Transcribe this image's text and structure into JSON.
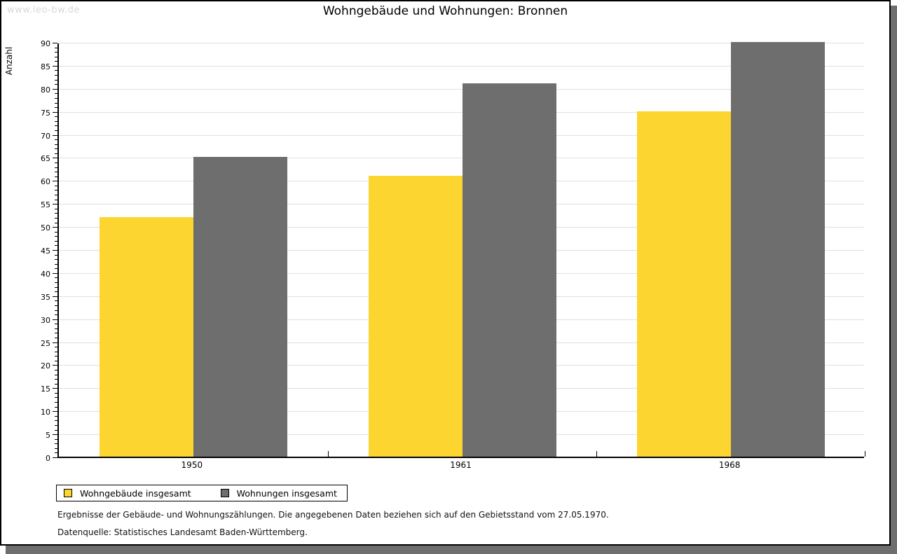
{
  "watermark": "www.leo-bw.de",
  "title": "Wohngebäude und Wohnungen: Bronnen",
  "chart_data": {
    "type": "bar",
    "title": "Wohngebäude und Wohnungen: Bronnen",
    "categories": [
      "1950",
      "1961",
      "1968"
    ],
    "series": [
      {
        "name": "Wohngebäude insgesamt",
        "color": "#fdd531",
        "values": [
          52,
          61,
          75
        ]
      },
      {
        "name": "Wohnungen insgesamt",
        "color": "#6e6e6e",
        "values": [
          65,
          81,
          90
        ]
      }
    ],
    "xlabel": "",
    "ylabel": "Anzahl",
    "ylim": [
      0,
      90
    ],
    "ytick_step": 5,
    "yminor_step": 1,
    "grid": true,
    "legend_position": "bottom-left"
  },
  "footer": {
    "line1": "Ergebnisse der Gebäude- und Wohnungszählungen. Die angegebenen Daten beziehen sich auf den Gebietsstand vom 27.05.1970.",
    "line2": "Datenquelle: Statistisches Landesamt Baden-Württemberg."
  },
  "colors": {
    "shadow": "#6e6e6e",
    "gridline": "#e0e0e0",
    "watermark": "#d8d8d8",
    "axis": "#000000"
  }
}
